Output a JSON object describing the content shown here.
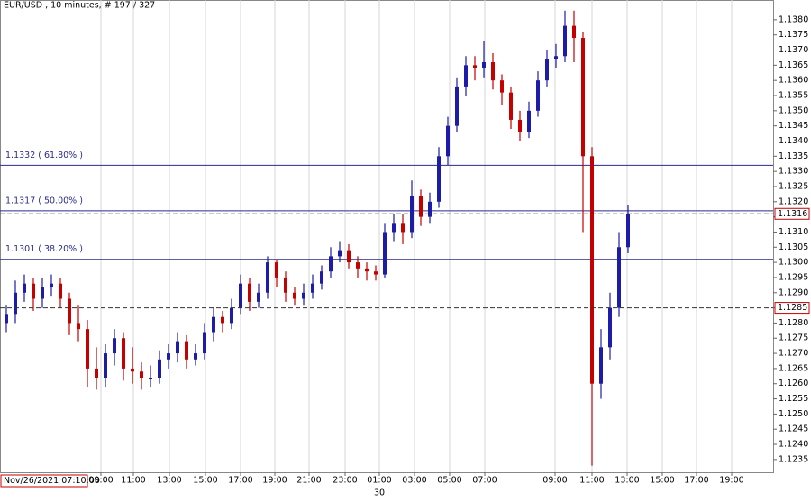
{
  "chart_data": {
    "type": "candlestick",
    "title": "EUR/USD , 10 minutes, # 197 / 327",
    "cursor_label": "Nov/26/2021 07:10:00",
    "day_label": "30",
    "up_color": "#1c1ca8",
    "down_color": "#c40000",
    "grid": "x",
    "x": [
      0,
      1,
      2,
      3,
      4,
      5,
      6,
      7,
      8,
      9,
      10,
      11,
      12,
      13,
      14,
      15,
      16,
      17,
      18,
      19,
      20,
      21,
      22,
      23,
      24,
      25,
      26,
      27,
      28,
      29,
      30,
      31,
      32,
      33,
      34,
      35,
      36,
      37,
      38,
      39,
      40,
      41,
      42,
      43,
      44,
      45,
      46,
      47,
      48,
      49,
      50,
      51,
      52,
      53,
      54,
      55,
      56,
      57,
      58,
      59,
      60,
      61,
      62,
      63,
      64,
      65,
      66,
      67,
      68,
      69
    ],
    "open": [
      1.128,
      1.1283,
      1.129,
      1.1293,
      1.1288,
      1.1292,
      1.1293,
      1.1288,
      1.128,
      1.1278,
      1.1265,
      1.1262,
      1.127,
      1.1275,
      1.1265,
      1.1264,
      1.1262,
      1.1262,
      1.1268,
      1.127,
      1.1274,
      1.1268,
      1.127,
      1.1277,
      1.1282,
      1.128,
      1.1285,
      1.1293,
      1.1287,
      1.129,
      1.13,
      1.1295,
      1.129,
      1.1288,
      1.129,
      1.1293,
      1.1297,
      1.1302,
      1.1304,
      1.13,
      1.1298,
      1.1297,
      1.1296,
      1.131,
      1.1313,
      1.131,
      1.1322,
      1.1315,
      1.132,
      1.1335,
      1.1345,
      1.1358,
      1.1365,
      1.1364,
      1.1366,
      1.136,
      1.1356,
      1.1347,
      1.1343,
      1.135,
      1.136,
      1.1367,
      1.1368,
      1.1378,
      1.1374,
      1.1335,
      1.126,
      1.1272,
      1.1285,
      1.1305
    ],
    "high": [
      1.1286,
      1.1294,
      1.1296,
      1.1295,
      1.1295,
      1.1296,
      1.1295,
      1.129,
      1.1286,
      1.1281,
      1.1272,
      1.1273,
      1.1278,
      1.1277,
      1.1272,
      1.1267,
      1.1266,
      1.1271,
      1.1273,
      1.1277,
      1.1276,
      1.1273,
      1.128,
      1.1285,
      1.1284,
      1.1288,
      1.1296,
      1.1295,
      1.1293,
      1.1302,
      1.1301,
      1.1297,
      1.1292,
      1.1293,
      1.1296,
      1.1299,
      1.1305,
      1.1307,
      1.1306,
      1.1302,
      1.13,
      1.1299,
      1.1313,
      1.1316,
      1.1316,
      1.1327,
      1.1324,
      1.1323,
      1.1338,
      1.1348,
      1.1361,
      1.1368,
      1.1368,
      1.1373,
      1.1369,
      1.1362,
      1.1358,
      1.135,
      1.1353,
      1.1363,
      1.137,
      1.1372,
      1.1383,
      1.1383,
      1.1376,
      1.1338,
      1.1278,
      1.129,
      1.131,
      1.1319
    ],
    "low": [
      1.1277,
      1.128,
      1.1287,
      1.1284,
      1.1285,
      1.1289,
      1.1285,
      1.1276,
      1.1274,
      1.1259,
      1.1258,
      1.1259,
      1.1266,
      1.1261,
      1.126,
      1.1258,
      1.1259,
      1.126,
      1.1265,
      1.1267,
      1.1265,
      1.1266,
      1.1268,
      1.1274,
      1.1277,
      1.1278,
      1.1283,
      1.1284,
      1.1285,
      1.1288,
      1.1292,
      1.1287,
      1.1286,
      1.1286,
      1.1288,
      1.1291,
      1.1295,
      1.13,
      1.1298,
      1.1295,
      1.1294,
      1.1294,
      1.1295,
      1.1307,
      1.1306,
      1.1308,
      1.1312,
      1.1313,
      1.1318,
      1.1332,
      1.1343,
      1.1355,
      1.136,
      1.1361,
      1.1357,
      1.1352,
      1.1344,
      1.134,
      1.1341,
      1.1348,
      1.1358,
      1.1364,
      1.1366,
      1.1366,
      1.131,
      1.1233,
      1.1255,
      1.1268,
      1.1282,
      1.1303
    ],
    "close": [
      1.1283,
      1.129,
      1.1293,
      1.1288,
      1.1292,
      1.1293,
      1.1288,
      1.128,
      1.1278,
      1.1265,
      1.1262,
      1.127,
      1.1275,
      1.1265,
      1.1264,
      1.1262,
      1.1262,
      1.1268,
      1.127,
      1.1274,
      1.1268,
      1.127,
      1.1277,
      1.1282,
      1.128,
      1.1285,
      1.1293,
      1.1287,
      1.129,
      1.13,
      1.1295,
      1.129,
      1.1288,
      1.129,
      1.1293,
      1.1297,
      1.1302,
      1.1304,
      1.13,
      1.1298,
      1.1297,
      1.1296,
      1.131,
      1.1313,
      1.131,
      1.1322,
      1.1315,
      1.132,
      1.1335,
      1.1345,
      1.1358,
      1.1365,
      1.1364,
      1.1366,
      1.136,
      1.1356,
      1.1347,
      1.1343,
      1.135,
      1.136,
      1.1367,
      1.1368,
      1.1378,
      1.1374,
      1.1335,
      1.126,
      1.1272,
      1.1285,
      1.1305,
      1.1316
    ],
    "xlim": [
      -0.7,
      85.1
    ],
    "xticks": [
      {
        "value": 10.5,
        "label": "09:00"
      },
      {
        "value": 14.1,
        "label": "11:00"
      },
      {
        "value": 18.1,
        "label": "13:00"
      },
      {
        "value": 22.1,
        "label": "15:00"
      },
      {
        "value": 26,
        "label": "17:00"
      },
      {
        "value": 29.8,
        "label": "19:00"
      },
      {
        "value": 33.6,
        "label": "21:00"
      },
      {
        "value": 37.6,
        "label": "23:00"
      },
      {
        "value": 41.4,
        "label": "01:00"
      },
      {
        "value": 45.3,
        "label": "03:00"
      },
      {
        "value": 49.2,
        "label": "05:00"
      },
      {
        "value": 53.1,
        "label": "07:00"
      },
      {
        "value": 60.9,
        "label": "09:00"
      },
      {
        "value": 65,
        "label": "11:00"
      },
      {
        "value": 68.9,
        "label": "13:00"
      },
      {
        "value": 72.8,
        "label": "15:00"
      },
      {
        "value": 76.6,
        "label": "17:00"
      },
      {
        "value": 80.5,
        "label": "19:00"
      }
    ],
    "ylim": [
      1.12308,
      1.13865
    ],
    "yticks": [
      1.1235,
      {
        "value": 1.124,
        "label": "1.1240"
      },
      1.1245,
      {
        "value": 1.125,
        "label": "1.1250"
      },
      1.1255,
      {
        "value": 1.126,
        "label": "1.1260"
      },
      1.1265,
      {
        "value": 1.127,
        "label": "1.1270"
      },
      1.1275,
      {
        "value": 1.128,
        "label": "1.1280"
      },
      1.1285,
      {
        "value": 1.129,
        "label": "1.1290"
      },
      1.1295,
      {
        "value": 1.13,
        "label": "1.1300"
      },
      1.1305,
      {
        "value": 1.131,
        "label": "1.1310"
      },
      1.1315,
      {
        "value": 1.132,
        "label": "1.1320"
      },
      1.1325,
      {
        "value": 1.133,
        "label": "1.1330"
      },
      1.1335,
      {
        "value": 1.134,
        "label": "1.1340"
      },
      1.1345,
      {
        "value": 1.135,
        "label": "1.1350"
      },
      1.1355,
      {
        "value": 1.136,
        "label": "1.1360"
      },
      1.1365,
      {
        "value": 1.137,
        "label": "1.1370"
      },
      1.1375,
      {
        "value": 1.138,
        "label": "1.1380"
      }
    ],
    "levels": [
      {
        "value": 1.1332,
        "label": "1.1332 ( 61.80% )"
      },
      {
        "value": 1.1317,
        "label": "1.1317 ( 50.00% )"
      },
      {
        "value": 1.1301,
        "label": "1.1301 ( 38.20% )"
      }
    ],
    "markers": [
      1.1316,
      1.1285
    ]
  }
}
